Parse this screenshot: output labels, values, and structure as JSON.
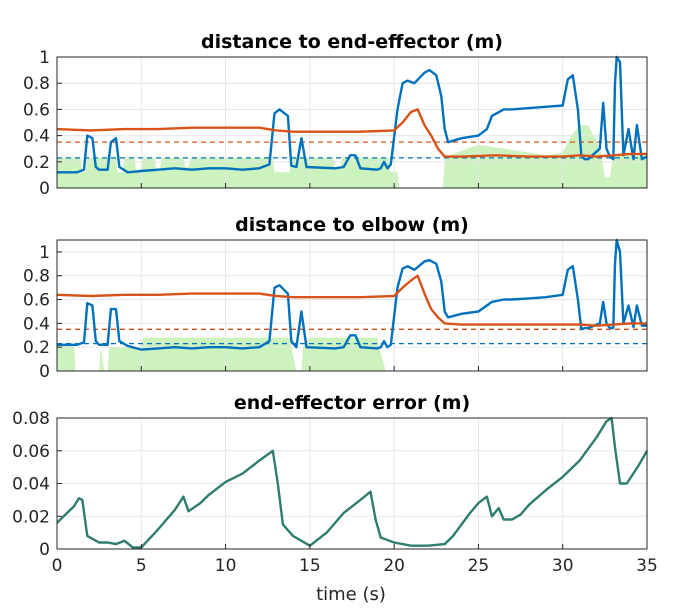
{
  "chart_data": [
    {
      "type": "line",
      "title": "distance to end-effector (m)",
      "xlim": [
        0,
        35
      ],
      "ylim": [
        0,
        1
      ],
      "xticks": [
        0,
        5,
        10,
        15,
        20,
        25,
        30,
        35
      ],
      "xtick_labels": [
        "",
        "",
        "",
        "",
        "",
        "",
        "",
        ""
      ],
      "yticks": [
        0,
        0.2,
        0.4,
        0.6,
        0.8,
        1
      ],
      "ytick_labels": [
        "0",
        "0.2",
        "0.4",
        "0.6",
        "0.8",
        "1"
      ],
      "grid": true,
      "colors": {
        "blue": "#0072bd",
        "orange": "#d95319",
        "green": "#ccf2bd"
      },
      "thresholds": [
        {
          "color": "#d95319",
          "y": 0.35
        },
        {
          "color": "#0072bd",
          "y": 0.23
        }
      ],
      "shaded": [
        [
          0,
          0.23
        ],
        [
          1.4,
          0.23
        ],
        [
          1.5,
          0.12
        ],
        [
          1.7,
          0.12
        ],
        [
          1.8,
          0.23
        ],
        [
          3.5,
          0.23
        ],
        [
          3.6,
          0.12
        ],
        [
          3.9,
          0.12
        ],
        [
          4.0,
          0.23
        ],
        [
          4.6,
          0.23
        ],
        [
          4.7,
          0.12
        ],
        [
          5.0,
          0.12
        ],
        [
          5.1,
          0.23
        ],
        [
          5.8,
          0.23
        ],
        [
          5.9,
          0.13
        ],
        [
          6.1,
          0.13
        ],
        [
          6.2,
          0.23
        ],
        [
          7.5,
          0.23
        ],
        [
          7.6,
          0.16
        ],
        [
          7.8,
          0.16
        ],
        [
          7.9,
          0.23
        ],
        [
          12.8,
          0.23
        ],
        [
          12.9,
          0.12
        ],
        [
          13.8,
          0.12
        ],
        [
          13.9,
          0.23
        ],
        [
          16.4,
          0.23
        ],
        [
          16.5,
          0.15
        ],
        [
          16.8,
          0.15
        ],
        [
          16.9,
          0.23
        ],
        [
          19.7,
          0.23
        ],
        [
          19.8,
          0.12
        ],
        [
          20.2,
          0.12
        ],
        [
          20.3,
          0.0
        ],
        [
          22.9,
          0.0
        ],
        [
          23.0,
          0.23
        ],
        [
          23.5,
          0.26
        ],
        [
          25.0,
          0.33
        ],
        [
          26.5,
          0.3
        ],
        [
          28.0,
          0.27
        ],
        [
          29.0,
          0.25
        ],
        [
          30.0,
          0.27
        ],
        [
          30.5,
          0.4
        ],
        [
          31.0,
          0.48
        ],
        [
          31.5,
          0.48
        ],
        [
          32.0,
          0.36
        ],
        [
          32.3,
          0.25
        ],
        [
          32.5,
          0.08
        ],
        [
          32.8,
          0.08
        ],
        [
          33.0,
          0.25
        ],
        [
          34.0,
          0.25
        ],
        [
          35,
          0.25
        ]
      ],
      "series": [
        {
          "color": "#0072bd",
          "x": [
            0,
            1.2,
            1.6,
            1.8,
            2.1,
            2.3,
            2.5,
            3.0,
            3.2,
            3.5,
            3.7,
            4.2,
            5.0,
            6.0,
            7.0,
            8.0,
            9.0,
            10.0,
            11.0,
            12.0,
            12.6,
            12.9,
            13.2,
            13.7,
            13.9,
            14.2,
            14.5,
            14.8,
            16.5,
            17.0,
            17.4,
            17.7,
            18.0,
            19.0,
            19.2,
            19.4,
            19.6,
            19.8,
            20.2,
            20.5,
            20.8,
            21.2,
            21.8,
            22.1,
            22.5,
            22.8,
            23.0,
            23.2,
            24.0,
            25.0,
            25.5,
            25.8,
            26.5,
            27.0,
            28.0,
            29.0,
            30.0,
            30.3,
            30.6,
            30.9,
            31.1,
            31.3,
            31.5,
            32.2,
            32.4,
            32.6,
            32.8,
            33.0,
            33.1,
            33.2,
            33.4,
            33.6,
            33.9,
            34.2,
            34.4,
            34.7,
            35
          ],
          "y": [
            0.12,
            0.12,
            0.14,
            0.4,
            0.38,
            0.16,
            0.14,
            0.14,
            0.35,
            0.38,
            0.16,
            0.12,
            0.13,
            0.14,
            0.15,
            0.14,
            0.15,
            0.15,
            0.14,
            0.15,
            0.18,
            0.57,
            0.6,
            0.55,
            0.17,
            0.16,
            0.38,
            0.16,
            0.15,
            0.16,
            0.25,
            0.25,
            0.15,
            0.14,
            0.15,
            0.2,
            0.15,
            0.18,
            0.6,
            0.8,
            0.82,
            0.8,
            0.88,
            0.9,
            0.86,
            0.7,
            0.45,
            0.35,
            0.38,
            0.4,
            0.45,
            0.55,
            0.6,
            0.6,
            0.61,
            0.62,
            0.63,
            0.83,
            0.86,
            0.6,
            0.25,
            0.22,
            0.22,
            0.3,
            0.65,
            0.3,
            0.24,
            0.22,
            0.8,
            1.0,
            0.96,
            0.25,
            0.45,
            0.22,
            0.48,
            0.22,
            0.24
          ]
        },
        {
          "color": "#d95319",
          "x": [
            0,
            2,
            4,
            6,
            8,
            10,
            12,
            13,
            14,
            16,
            18,
            20,
            20.5,
            21.0,
            21.4,
            21.8,
            22.2,
            22.6,
            23.0,
            24,
            26,
            28,
            30,
            31,
            32,
            33,
            34,
            35
          ],
          "y": [
            0.45,
            0.44,
            0.45,
            0.45,
            0.46,
            0.46,
            0.46,
            0.44,
            0.43,
            0.43,
            0.43,
            0.44,
            0.5,
            0.58,
            0.6,
            0.48,
            0.4,
            0.3,
            0.24,
            0.24,
            0.25,
            0.24,
            0.24,
            0.25,
            0.24,
            0.25,
            0.26,
            0.26
          ]
        }
      ]
    },
    {
      "type": "line",
      "title": "distance to elbow (m)",
      "xlim": [
        0,
        35
      ],
      "ylim": [
        0,
        1.1
      ],
      "xticks": [
        0,
        5,
        10,
        15,
        20,
        25,
        30,
        35
      ],
      "xtick_labels": [
        "",
        "",
        "",
        "",
        "",
        "",
        "",
        ""
      ],
      "yticks": [
        0,
        0.2,
        0.4,
        0.6,
        0.8,
        1
      ],
      "ytick_labels": [
        "0",
        "0.2",
        "0.4",
        "0.6",
        "0.8",
        "1"
      ],
      "grid": true,
      "colors": {
        "blue": "#0072bd",
        "orange": "#d95319",
        "green": "#ccf2bd"
      },
      "thresholds": [
        {
          "color": "#d95319",
          "y": 0.35
        },
        {
          "color": "#0072bd",
          "y": 0.23
        }
      ],
      "shaded": [
        [
          0,
          0.23
        ],
        [
          1.0,
          0.23
        ],
        [
          1.1,
          0.0
        ],
        [
          2.5,
          0.0
        ],
        [
          2.6,
          0.2
        ],
        [
          2.8,
          0.0
        ],
        [
          3.0,
          0.0
        ],
        [
          3.1,
          0.2
        ],
        [
          5.0,
          0.2
        ],
        [
          5.1,
          0.28
        ],
        [
          13.8,
          0.28
        ],
        [
          13.9,
          0.2
        ],
        [
          14.2,
          0.0
        ],
        [
          14.5,
          0.0
        ],
        [
          14.6,
          0.2
        ],
        [
          15.0,
          0.28
        ],
        [
          19.0,
          0.28
        ],
        [
          19.1,
          0.2
        ],
        [
          19.5,
          0.0
        ],
        [
          20.2,
          0.0
        ],
        [
          35,
          0.0
        ]
      ],
      "series": [
        {
          "color": "#0072bd",
          "x": [
            0,
            1.2,
            1.6,
            1.8,
            2.1,
            2.3,
            2.5,
            3.0,
            3.2,
            3.5,
            3.7,
            4.2,
            5.0,
            6.0,
            7.0,
            8.0,
            9.0,
            10.0,
            11.0,
            12.0,
            12.6,
            12.9,
            13.2,
            13.7,
            13.9,
            14.2,
            14.5,
            14.8,
            16.5,
            17.0,
            17.4,
            17.7,
            18.0,
            19.0,
            19.2,
            19.4,
            19.6,
            19.8,
            20.2,
            20.5,
            20.8,
            21.2,
            21.8,
            22.1,
            22.5,
            22.8,
            23.0,
            23.2,
            24.0,
            25.0,
            25.5,
            25.8,
            26.5,
            27.0,
            28.0,
            29.0,
            30.0,
            30.3,
            30.6,
            30.9,
            31.1,
            31.3,
            31.5,
            32.2,
            32.4,
            32.6,
            32.8,
            33.0,
            33.1,
            33.2,
            33.4,
            33.6,
            33.9,
            34.2,
            34.4,
            34.7,
            35
          ],
          "y": [
            0.22,
            0.22,
            0.24,
            0.57,
            0.55,
            0.25,
            0.22,
            0.22,
            0.52,
            0.52,
            0.25,
            0.21,
            0.18,
            0.19,
            0.2,
            0.19,
            0.2,
            0.2,
            0.19,
            0.2,
            0.25,
            0.7,
            0.72,
            0.65,
            0.25,
            0.2,
            0.5,
            0.2,
            0.19,
            0.2,
            0.3,
            0.3,
            0.2,
            0.19,
            0.2,
            0.25,
            0.2,
            0.22,
            0.7,
            0.86,
            0.88,
            0.85,
            0.92,
            0.93,
            0.9,
            0.75,
            0.5,
            0.45,
            0.48,
            0.5,
            0.55,
            0.58,
            0.6,
            0.6,
            0.61,
            0.62,
            0.64,
            0.85,
            0.88,
            0.6,
            0.35,
            0.36,
            0.36,
            0.4,
            0.58,
            0.4,
            0.36,
            0.36,
            0.9,
            1.1,
            1.0,
            0.4,
            0.55,
            0.37,
            0.55,
            0.38,
            0.38
          ]
        },
        {
          "color": "#d95319",
          "x": [
            0,
            2,
            4,
            6,
            8,
            10,
            12,
            13,
            14,
            16,
            18,
            20,
            20.5,
            21.0,
            21.4,
            21.8,
            22.2,
            22.6,
            23.0,
            24,
            26,
            28,
            30,
            31,
            32,
            33,
            34,
            35
          ],
          "y": [
            0.64,
            0.63,
            0.64,
            0.64,
            0.65,
            0.65,
            0.65,
            0.63,
            0.62,
            0.62,
            0.62,
            0.63,
            0.7,
            0.76,
            0.8,
            0.65,
            0.52,
            0.45,
            0.4,
            0.39,
            0.39,
            0.39,
            0.39,
            0.39,
            0.38,
            0.39,
            0.4,
            0.4
          ]
        }
      ]
    },
    {
      "type": "line",
      "title": "end-effector error (m)",
      "xlabel": "time (s)",
      "xlim": [
        0,
        35
      ],
      "ylim": [
        0,
        0.08
      ],
      "xticks": [
        0,
        5,
        10,
        15,
        20,
        25,
        30,
        35
      ],
      "xtick_labels": [
        "0",
        "5",
        "10",
        "15",
        "20",
        "25",
        "30",
        "35"
      ],
      "yticks": [
        0,
        0.02,
        0.04,
        0.06,
        0.08
      ],
      "ytick_labels": [
        "0",
        "0.02",
        "0.04",
        "0.06",
        "0.08"
      ],
      "grid": true,
      "colors": {
        "line": "#2e7d6e"
      },
      "series": [
        {
          "color": "#2e7d6e",
          "x": [
            0,
            0.5,
            1.0,
            1.3,
            1.5,
            1.8,
            2.5,
            3.0,
            3.5,
            4.0,
            4.5,
            5.0,
            6.0,
            7.0,
            7.5,
            7.8,
            8.5,
            9.0,
            10.0,
            11.0,
            12.0,
            12.8,
            13.1,
            13.4,
            14.0,
            14.5,
            15.0,
            16.0,
            17.0,
            18.0,
            18.6,
            18.9,
            19.2,
            20.0,
            21.0,
            22.0,
            23.0,
            23.5,
            24.5,
            25.0,
            25.5,
            25.8,
            26.2,
            26.5,
            27.0,
            27.5,
            28.0,
            29.0,
            30.0,
            31.0,
            32.0,
            32.6,
            32.9,
            33.1,
            33.4,
            33.8,
            34.5,
            35
          ],
          "y": [
            0.016,
            0.021,
            0.026,
            0.031,
            0.03,
            0.008,
            0.004,
            0.004,
            0.003,
            0.005,
            0.001,
            0.001,
            0.012,
            0.024,
            0.032,
            0.023,
            0.028,
            0.033,
            0.041,
            0.046,
            0.054,
            0.06,
            0.04,
            0.015,
            0.008,
            0.005,
            0.002,
            0.01,
            0.022,
            0.03,
            0.035,
            0.018,
            0.007,
            0.004,
            0.002,
            0.002,
            0.003,
            0.008,
            0.022,
            0.028,
            0.032,
            0.02,
            0.025,
            0.018,
            0.018,
            0.021,
            0.027,
            0.036,
            0.044,
            0.054,
            0.068,
            0.078,
            0.08,
            0.062,
            0.04,
            0.04,
            0.051,
            0.06
          ]
        }
      ]
    }
  ]
}
